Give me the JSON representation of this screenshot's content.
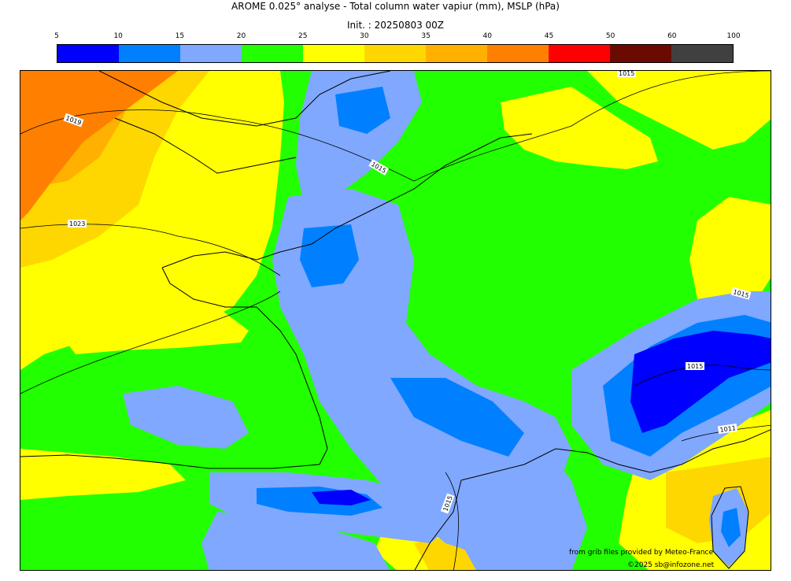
{
  "title": "AROME 0.025° analyse - Total column water vapiur (mm), MSLP (hPa)",
  "init": "Init. : 20250803 00Z",
  "colorbar": {
    "ticks": [
      "5",
      "10",
      "15",
      "20",
      "25",
      "30",
      "35",
      "40",
      "45",
      "50",
      "60",
      "100"
    ],
    "colors": [
      "#0000ff",
      "#0080ff",
      "#80a8ff",
      "#22ff00",
      "#ffff00",
      "#ffd700",
      "#ffb000",
      "#ff8000",
      "#ff0000",
      "#6a0a00",
      "#404040"
    ]
  },
  "colors": {
    "vapour_5_10": "#0000ff",
    "vapour_10_15": "#0080ff",
    "vapour_15_20": "#80a8ff",
    "vapour_20_25": "#22ff00",
    "vapour_25_30": "#ffff00",
    "vapour_30_35": "#ffd700",
    "vapour_35_40": "#ffb000",
    "vapour_40_45": "#ff8000"
  },
  "isobars": [
    {
      "label": "1019"
    },
    {
      "label": "1015"
    },
    {
      "label": "1023"
    },
    {
      "label": "1015"
    },
    {
      "label": "1015"
    },
    {
      "label": "1015"
    },
    {
      "label": "1011"
    },
    {
      "label": "1015"
    }
  ],
  "credits": {
    "source": "from grib files provided by Meteo-France",
    "copyright": "©2025 sb@infozone.net"
  }
}
